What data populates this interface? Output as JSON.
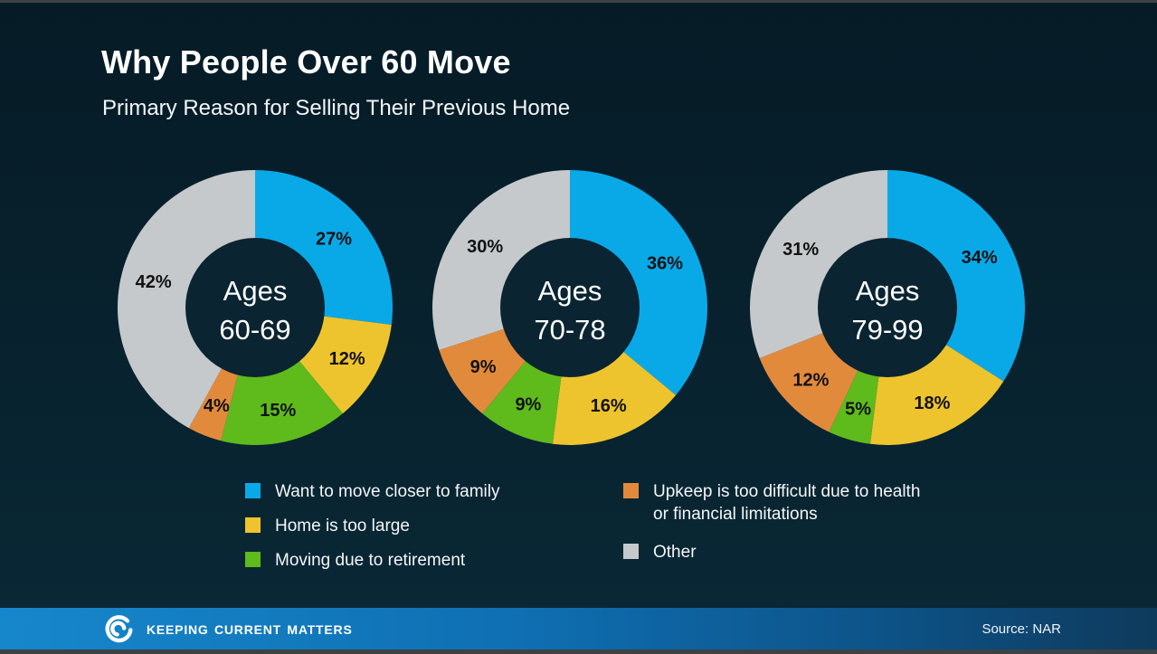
{
  "page": {
    "title": "Why People Over 60 Move",
    "subtitle": "Primary Reason for Selling Their Previous Home"
  },
  "chart_data": {
    "type": "pie",
    "variant": "donut",
    "start_angle_deg": 0,
    "direction": "clockwise",
    "value_suffix": "%",
    "label_color": "#121212",
    "hole_color": "#0a2432",
    "center_text_color": "#ffffff",
    "legend_position": "bottom",
    "categories": [
      {
        "label": "Want to move closer to family",
        "color": "#09a9e8"
      },
      {
        "label": "Home is too large",
        "color": "#eec42e"
      },
      {
        "label": "Moving due to retirement",
        "color": "#5fba1c"
      },
      {
        "label": "Upkeep is too difficult due to health or financial limitations",
        "color": "#e28a3c"
      },
      {
        "label": "Other",
        "color": "#c5c9cb"
      }
    ],
    "charts": [
      {
        "center_label_line1": "Ages",
        "center_label_line2": "60-69",
        "values": [
          27,
          12,
          15,
          4,
          42
        ]
      },
      {
        "center_label_line1": "Ages",
        "center_label_line2": "70-78",
        "values": [
          36,
          16,
          9,
          9,
          30
        ]
      },
      {
        "center_label_line1": "Ages",
        "center_label_line2": "79-99",
        "values": [
          34,
          18,
          5,
          12,
          31
        ]
      }
    ]
  },
  "footer": {
    "brand": "Keeping Current Matters",
    "source": "Source: NAR"
  }
}
